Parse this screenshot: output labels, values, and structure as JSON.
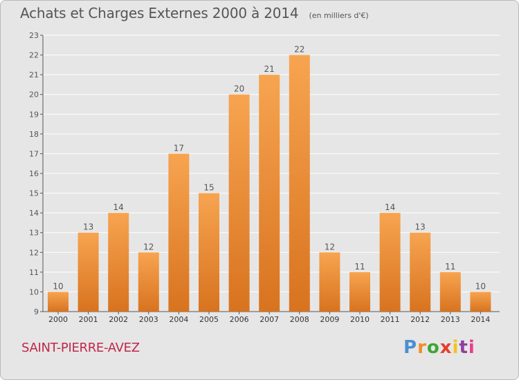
{
  "header": {
    "title": "Achats et Charges Externes 2000 à 2014",
    "subtitle": "(en milliers d'€)"
  },
  "footer": {
    "place": "SAINT-PIERRE-AVEZ",
    "logo": {
      "text": "Proxiti",
      "colors": [
        "#4a8fd4",
        "#f28c28",
        "#3fa535",
        "#e83e2c",
        "#f6c21d",
        "#8e3ea0",
        "#e83e8c"
      ]
    }
  },
  "colors": {
    "bar_light": "#f7a450",
    "bar_dark": "#d8731f",
    "background": "#e6e6e6",
    "grid": "#ffffff"
  },
  "chart_data": {
    "type": "bar",
    "title": "Achats et Charges Externes 2000 à 2014",
    "categories": [
      "2000",
      "2001",
      "2002",
      "2003",
      "2004",
      "2005",
      "2006",
      "2007",
      "2008",
      "2009",
      "2010",
      "2011",
      "2012",
      "2013",
      "2014"
    ],
    "values": [
      10,
      13,
      14,
      12,
      17,
      15,
      20,
      21,
      22,
      12,
      11,
      14,
      13,
      11,
      10
    ],
    "xlabel": "",
    "ylabel": "",
    "ylim": [
      9,
      23
    ],
    "yticks": [
      9,
      10,
      11,
      12,
      13,
      14,
      15,
      16,
      17,
      18,
      19,
      20,
      21,
      22,
      23
    ],
    "grid": true,
    "data_labels": true
  }
}
